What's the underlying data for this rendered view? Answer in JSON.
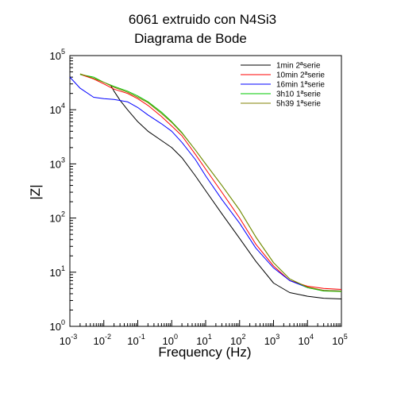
{
  "chart_data": {
    "type": "line",
    "title_lines": [
      "6061 extruido con N4Si3",
      "Diagrama de Bode"
    ],
    "xlabel": "Frequency (Hz)",
    "ylabel": "|Z|",
    "x_scale": "log",
    "y_scale": "log",
    "xlim": [
      0.001,
      100000
    ],
    "ylim": [
      1,
      100000
    ],
    "x_ticks": [
      {
        "value": 0.001,
        "base": "10",
        "exp": "-3"
      },
      {
        "value": 0.01,
        "base": "10",
        "exp": "-2"
      },
      {
        "value": 0.1,
        "base": "10",
        "exp": "-1"
      },
      {
        "value": 1,
        "base": "10",
        "exp": "0"
      },
      {
        "value": 10,
        "base": "10",
        "exp": "1"
      },
      {
        "value": 100,
        "base": "10",
        "exp": "2"
      },
      {
        "value": 1000,
        "base": "10",
        "exp": "3"
      },
      {
        "value": 10000,
        "base": "10",
        "exp": "4"
      },
      {
        "value": 100000,
        "base": "10",
        "exp": "5"
      }
    ],
    "y_ticks": [
      {
        "value": 1,
        "base": "10",
        "exp": "0"
      },
      {
        "value": 10,
        "base": "10",
        "exp": "1"
      },
      {
        "value": 100,
        "base": "10",
        "exp": "2"
      },
      {
        "value": 1000,
        "base": "10",
        "exp": "3"
      },
      {
        "value": 10000,
        "base": "10",
        "exp": "4"
      },
      {
        "value": 100000,
        "base": "10",
        "exp": "5"
      }
    ],
    "grid": false,
    "legend_position": "top-right",
    "series": [
      {
        "name": "1min 2ªserie",
        "color": "#000000",
        "x": [
          0.016,
          0.02,
          0.03,
          0.05,
          0.1,
          0.2,
          0.5,
          1,
          2,
          5,
          10,
          30,
          100,
          300,
          1000,
          3000,
          10000,
          30000,
          100000
        ],
        "y": [
          28000,
          22000,
          15000,
          10000,
          6000,
          4000,
          2700,
          2000,
          1300,
          600,
          320,
          120,
          42,
          16,
          6.3,
          4.2,
          3.6,
          3.3,
          3.2
        ]
      },
      {
        "name": "10min 2ªserie",
        "color": "#ff0000",
        "x": [
          0.002,
          0.005,
          0.01,
          0.02,
          0.05,
          0.1,
          0.2,
          0.5,
          1,
          2,
          5,
          10,
          30,
          100,
          300,
          1000,
          3000,
          10000,
          30000,
          100000
        ],
        "y": [
          45000,
          37000,
          30000,
          24000,
          20000,
          16000,
          12000,
          7500,
          5000,
          3300,
          1500,
          800,
          300,
          100,
          33,
          13,
          7.0,
          5.5,
          5.0,
          4.8
        ]
      },
      {
        "name": "16min 1ªserie",
        "color": "#0000ff",
        "x": [
          0.001,
          0.002,
          0.005,
          0.01,
          0.02,
          0.05,
          0.1,
          0.2,
          0.5,
          1,
          2,
          5,
          10,
          30,
          100,
          300,
          1000,
          3000,
          10000,
          30000,
          100000
        ],
        "y": [
          40000,
          25000,
          17000,
          16000,
          15500,
          14000,
          11000,
          8000,
          5500,
          4000,
          2500,
          1200,
          600,
          220,
          80,
          28,
          12,
          7.0,
          5.2,
          4.6,
          4.5
        ]
      },
      {
        "name": "3h10 1ªserie",
        "color": "#00c800",
        "x": [
          0.002,
          0.005,
          0.01,
          0.02,
          0.05,
          0.1,
          0.2,
          0.5,
          1,
          2,
          5,
          10,
          30,
          100,
          300,
          1000,
          3000,
          10000,
          30000,
          100000
        ],
        "y": [
          45000,
          40000,
          32000,
          27000,
          22000,
          18000,
          14000,
          9000,
          6000,
          3800,
          1800,
          1000,
          400,
          140,
          45,
          15,
          7.5,
          5.2,
          4.5,
          4.4
        ]
      },
      {
        "name": "5h39 1ªserie",
        "color": "#808000",
        "x": [
          0.002,
          0.005,
          0.01,
          0.02,
          0.05,
          0.1,
          0.2,
          0.5,
          1,
          2,
          5,
          10,
          30,
          100,
          300,
          1000,
          3000,
          10000,
          30000,
          100000
        ],
        "y": [
          46000,
          38000,
          32000,
          26000,
          21000,
          17000,
          13500,
          8500,
          5800,
          3700,
          1800,
          1000,
          400,
          140,
          45,
          15,
          7.5,
          5.3,
          4.6,
          4.5
        ]
      }
    ]
  }
}
